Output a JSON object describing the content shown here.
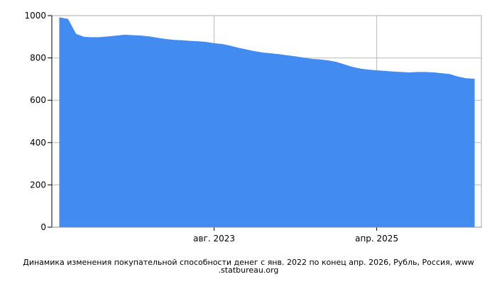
{
  "chart_data": {
    "type": "area",
    "title": "",
    "xlabel": "",
    "ylabel": "",
    "ylim": [
      0,
      1000
    ],
    "xlim": [
      "2022-01",
      "2026-04"
    ],
    "yticks": [
      0,
      200,
      400,
      600,
      800,
      1000
    ],
    "xticks": [
      {
        "x": "2023-08",
        "label": "авг. 2023"
      },
      {
        "x": "2025-04",
        "label": "апр. 2025"
      }
    ],
    "grid": true,
    "color": "#428bf0",
    "series": [
      {
        "name": "",
        "x": [
          "2022-01",
          "2022-02",
          "2022-03",
          "2022-04",
          "2022-05",
          "2022-06",
          "2022-07",
          "2022-08",
          "2022-09",
          "2022-10",
          "2022-11",
          "2022-12",
          "2023-01",
          "2023-02",
          "2023-03",
          "2023-04",
          "2023-05",
          "2023-06",
          "2023-07",
          "2023-08",
          "2023-09",
          "2023-10",
          "2023-11",
          "2023-12",
          "2024-01",
          "2024-02",
          "2024-03",
          "2024-04",
          "2024-05",
          "2024-06",
          "2024-07",
          "2024-08",
          "2024-09",
          "2024-10",
          "2024-11",
          "2024-12",
          "2025-01",
          "2025-02",
          "2025-03",
          "2025-04",
          "2025-05",
          "2025-06",
          "2025-07",
          "2025-08",
          "2025-09",
          "2025-10",
          "2025-11",
          "2025-12",
          "2026-01",
          "2026-02",
          "2026-03",
          "2026-04"
        ],
        "values": [
          990,
          983,
          912,
          898,
          896,
          897,
          900,
          904,
          908,
          906,
          904,
          900,
          894,
          888,
          884,
          882,
          879,
          877,
          874,
          868,
          864,
          856,
          846,
          838,
          830,
          824,
          820,
          816,
          811,
          806,
          800,
          794,
          791,
          787,
          780,
          768,
          756,
          748,
          743,
          740,
          737,
          734,
          732,
          730,
          732,
          732,
          730,
          726,
          722,
          710,
          702,
          700
        ]
      }
    ]
  },
  "caption": {
    "line1": "Динамика изменения покупательной способности денег с янв. 2022 по конец апр. 2026, Рубль, Россия, www",
    "line2": ".statbureau.org"
  }
}
